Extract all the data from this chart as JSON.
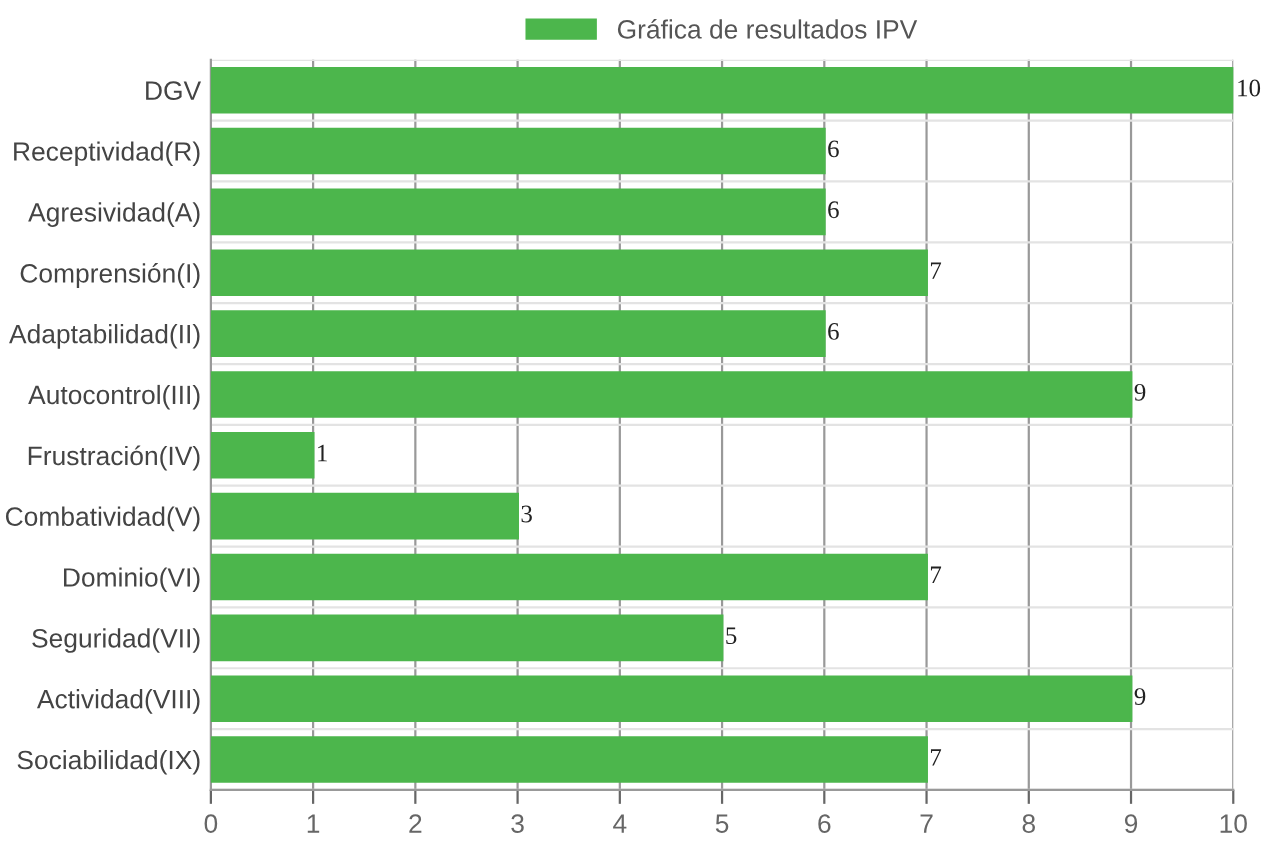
{
  "chart_data": {
    "type": "bar",
    "orientation": "horizontal",
    "categories": [
      "DGV",
      "Receptividad(R)",
      "Agresividad(A)",
      "Comprensión(I)",
      "Adaptabilidad(II)",
      "Autocontrol(III)",
      "Frustración(IV)",
      "Combatividad(V)",
      "Dominio(VI)",
      "Seguridad(VII)",
      "Actividad(VIII)",
      "Sociabilidad(IX)"
    ],
    "series": [
      {
        "name": "Gráfica de resultados IPV",
        "color": "#4cb64c",
        "values": [
          10,
          6,
          6,
          7,
          6,
          9,
          1,
          3,
          7,
          5,
          9,
          7
        ]
      }
    ],
    "xlim": [
      0,
      10
    ],
    "xticks": [
      0,
      1,
      2,
      3,
      4,
      5,
      6,
      7,
      8,
      9,
      10
    ],
    "data_labels": true,
    "grid": true,
    "legend": "top"
  }
}
